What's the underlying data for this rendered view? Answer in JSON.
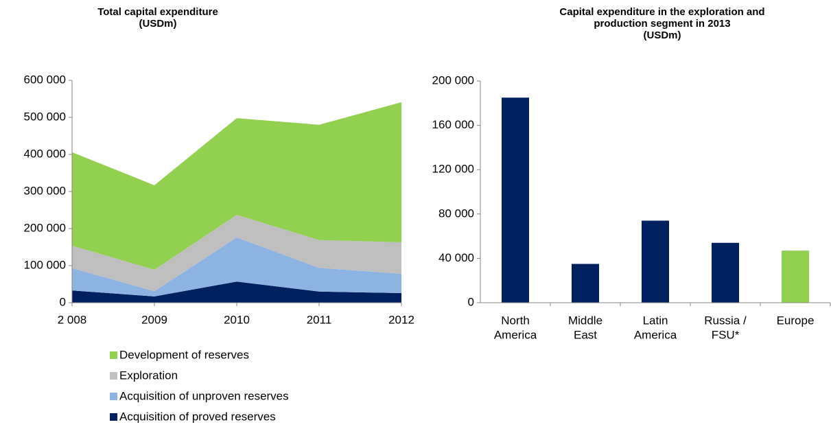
{
  "chart_data": [
    {
      "type": "area",
      "stacked": true,
      "title": [
        "Total capital expenditure",
        "(USDm)"
      ],
      "categories": [
        "2 008",
        "2009",
        "2010",
        "2011",
        "2012"
      ],
      "series": [
        {
          "name": "Acquisition of proved reserves",
          "color": "#002060",
          "values": [
            33000,
            17000,
            57000,
            30000,
            26000
          ]
        },
        {
          "name": "Acquisition of unproven reserves",
          "color": "#8db3e2",
          "values": [
            60000,
            14000,
            119000,
            64000,
            52000
          ]
        },
        {
          "name": "Exploration",
          "color": "#bfbfbf",
          "values": [
            61000,
            58000,
            61000,
            75000,
            85000
          ]
        },
        {
          "name": "Development of reserves",
          "color": "#92d050",
          "values": [
            252000,
            228000,
            261000,
            311000,
            378000
          ]
        }
      ],
      "ylim": [
        0,
        600000
      ],
      "yticks": [
        0,
        {
          "value": 100000,
          "label": "100 000"
        },
        {
          "value": 200000,
          "label": "200 000"
        },
        {
          "value": 300000,
          "label": "300 000"
        },
        {
          "value": 400000,
          "label": "400 000"
        },
        {
          "value": 500000,
          "label": "500 000"
        },
        {
          "value": 600000,
          "label": "600 000"
        }
      ],
      "legend": "bottom"
    },
    {
      "type": "bar",
      "title": [
        "Capital expenditure in the exploration and",
        "production segment in 2013",
        "(USDm)"
      ],
      "categories": [
        [
          "North",
          "America"
        ],
        [
          "Middle",
          "East"
        ],
        [
          "Latin",
          "America"
        ],
        [
          "Russia /",
          "FSU*"
        ],
        [
          "Europe"
        ]
      ],
      "values": [
        185000,
        35000,
        74000,
        54000,
        47000
      ],
      "colors": [
        "#002060",
        "#002060",
        "#002060",
        "#002060",
        "#92d050"
      ],
      "ylim": [
        0,
        200000
      ],
      "yticks": [
        0,
        {
          "value": 40000,
          "label": "40 000"
        },
        {
          "value": 80000,
          "label": "80 000"
        },
        {
          "value": 120000,
          "label": "120 000"
        },
        {
          "value": 160000,
          "label": "160 000"
        },
        {
          "value": 200000,
          "label": "200 000"
        }
      ]
    }
  ]
}
